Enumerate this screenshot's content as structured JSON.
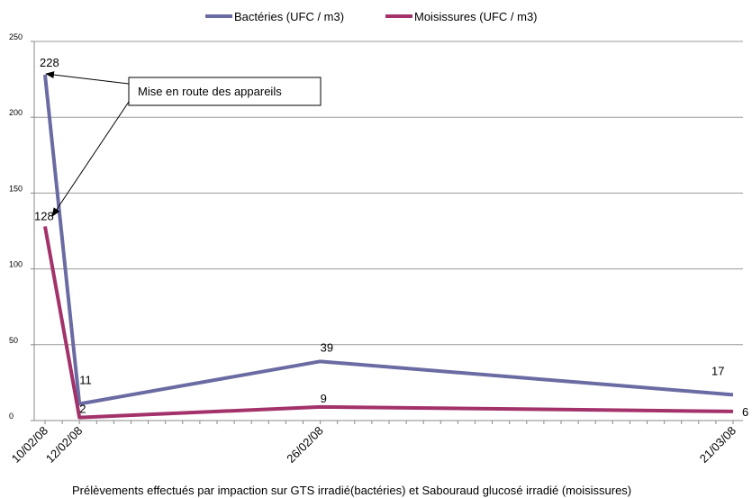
{
  "chart_data": {
    "type": "line",
    "title": "",
    "xlabel": "Prélèvements effectués par impaction sur GTS irradié(bactéries) et Sabouraud glucosé irradié (moisissures)",
    "ylabel": "",
    "ylim": [
      0,
      250
    ],
    "yticks": [
      "0",
      "50",
      "100",
      "150",
      "200",
      "250"
    ],
    "x_dates": [
      "10/02/08",
      "12/02/08",
      "26/02/08",
      "21/03/08"
    ],
    "grid": true,
    "legend_position": "top",
    "series": [
      {
        "name": "Bactéries (UFC / m3)",
        "color": "#6b6ba3",
        "values": [
          228,
          11,
          39,
          17
        ],
        "labels": [
          "228",
          "11",
          "39",
          "17"
        ]
      },
      {
        "name": "Moisissures (UFC / m3)",
        "color": "#a3326b",
        "values": [
          128,
          2,
          9,
          6
        ],
        "labels": [
          "128",
          "2",
          "9",
          "6"
        ]
      }
    ],
    "annotation": "Mise en route des appareils"
  }
}
